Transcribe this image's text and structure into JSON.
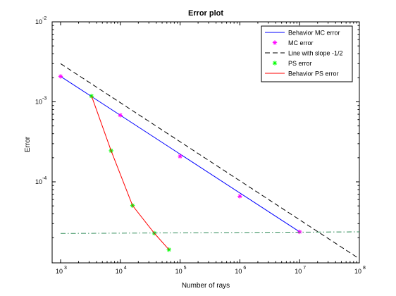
{
  "chart_data": {
    "type": "line",
    "title": "Error plot",
    "xlabel": "Number of rays",
    "ylabel": "Error",
    "xscale": "log",
    "yscale": "log",
    "xlim": [
      1000,
      100000000
    ],
    "ylim": [
      1.25e-05,
      0.01
    ],
    "grid": false,
    "legend_position": "top-right",
    "x_ticks": [
      {
        "value": 1000,
        "base": "10",
        "exp": "3"
      },
      {
        "value": 10000,
        "base": "10",
        "exp": "4"
      },
      {
        "value": 100000,
        "base": "10",
        "exp": "5"
      },
      {
        "value": 1000000,
        "base": "10",
        "exp": "6"
      },
      {
        "value": 10000000,
        "base": "10",
        "exp": "7"
      },
      {
        "value": 100000000,
        "base": "10",
        "exp": "8"
      }
    ],
    "y_ticks": [
      {
        "value": 0.0001,
        "base": "10",
        "exp": "-4"
      },
      {
        "value": 0.001,
        "base": "10",
        "exp": "-3"
      },
      {
        "value": 0.01,
        "base": "10",
        "exp": "-2"
      }
    ],
    "series": [
      {
        "name": "Behavior MC error",
        "style": "solid",
        "marker": "none",
        "color": "#0000ff",
        "x": [
          1000,
          10000000
        ],
        "y": [
          0.00208,
          2.37e-05
        ]
      },
      {
        "name": "MC error",
        "style": "none",
        "marker": "star",
        "color": "#ff00ff",
        "x": [
          1000,
          10000,
          100000,
          1000000,
          10000000
        ],
        "y": [
          0.00208,
          0.00068,
          0.000208,
          6.6e-05,
          2.37e-05
        ]
      },
      {
        "name": "Line with slope -1/2",
        "style": "dashed",
        "marker": "none",
        "color": "#000000",
        "x": [
          1000,
          100000000
        ],
        "y": [
          0.003,
          1.09e-05
        ]
      },
      {
        "name": "PS error",
        "style": "none",
        "marker": "star",
        "color": "#00ff00",
        "x": [
          3300,
          7000,
          16000,
          37000,
          65000
        ],
        "y": [
          0.00118,
          0.000245,
          5.05e-05,
          2.28e-05,
          1.42e-05
        ]
      },
      {
        "name": "Behavior PS error",
        "style": "solid",
        "marker": "none",
        "color": "#ff0000",
        "x": [
          3300,
          7000,
          16000,
          37000,
          65000
        ],
        "y": [
          0.00118,
          0.000245,
          5.05e-05,
          2.28e-05,
          1.42e-05
        ]
      },
      {
        "style": "dashdot",
        "marker": "none",
        "color": "#2e8b57",
        "legend": false,
        "x": [
          1000,
          100000000
        ],
        "y": [
          2.26e-05,
          2.37e-05
        ]
      }
    ]
  }
}
